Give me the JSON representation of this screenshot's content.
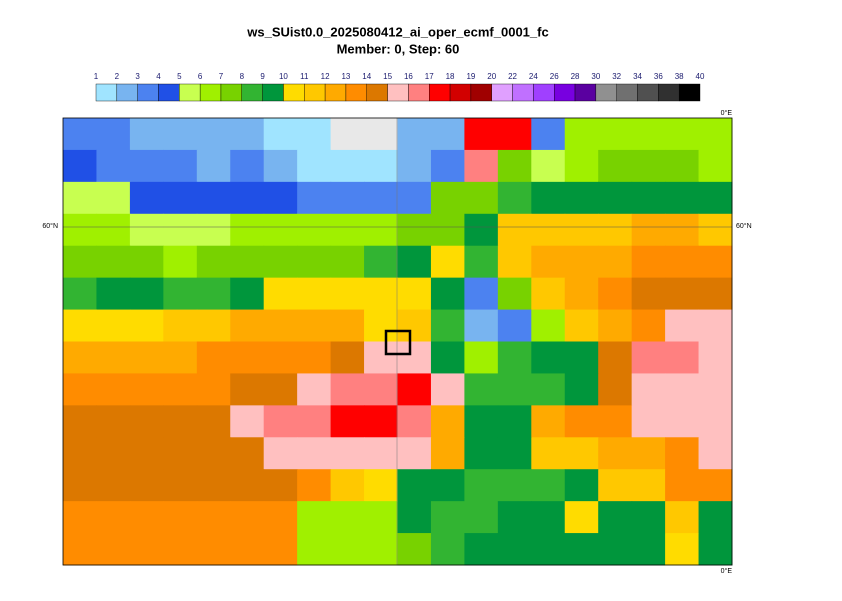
{
  "title": "ws_SUist0.0_2025080412_ai_oper_ecmf_0001_fc",
  "subtitle": "Member: 0, Step: 60",
  "colorbar": {
    "levels": [
      1,
      2,
      3,
      4,
      5,
      6,
      7,
      8,
      9,
      10,
      11,
      12,
      13,
      14,
      15,
      16,
      17,
      18,
      19,
      20,
      22,
      24,
      26,
      28,
      30,
      32,
      34,
      36,
      38,
      40
    ],
    "colors": [
      "#a0e4ff",
      "#78b4f0",
      "#4c82f0",
      "#2050e6",
      "#c8ff50",
      "#a0f000",
      "#78d200",
      "#32b432",
      "#00963c",
      "#ffdc00",
      "#ffc800",
      "#ffaa00",
      "#ff8c00",
      "#dc7800",
      "#ffc0c0",
      "#ff8080",
      "#ff0000",
      "#d20000",
      "#a00000",
      "#e0a0ff",
      "#c070ff",
      "#a040ff",
      "#7800e0",
      "#5a00a0",
      "#909090",
      "#707070",
      "#505050",
      "#303030",
      "#000000"
    ],
    "under_color": "#e8e8e8"
  },
  "map": {
    "lat_label": "60°N",
    "lon_label": "0°E",
    "field": [
      [
        3.5,
        3.5,
        2.5,
        2.5,
        2.5,
        2.5,
        1.5,
        1.5,
        0.5,
        0.5,
        2.5,
        2.5,
        17.5,
        17.5,
        3.5,
        6.5,
        6.5,
        6.5,
        6.5,
        6.5
      ],
      [
        4.5,
        3.5,
        3.5,
        3.5,
        2.5,
        3.5,
        2.5,
        1.5,
        1.5,
        1.5,
        2.5,
        3.5,
        16.5,
        7.5,
        5.5,
        6.5,
        7.5,
        7.5,
        7.5,
        6.5
      ],
      [
        5.5,
        5.5,
        4.5,
        4.5,
        4.5,
        4.5,
        4.5,
        3.5,
        3.5,
        3.5,
        3.5,
        7.5,
        7.5,
        8.5,
        9.5,
        9.5,
        9.5,
        9.5,
        9.5,
        9.5
      ],
      [
        6.5,
        6.5,
        5.5,
        5.5,
        5.5,
        6.5,
        6.5,
        6.5,
        6.5,
        6.5,
        7.5,
        7.5,
        9.5,
        11.5,
        11.5,
        11.5,
        11.5,
        12.5,
        12.5,
        11.5
      ],
      [
        7.5,
        7.5,
        7.5,
        6.5,
        7.5,
        7.5,
        7.5,
        7.5,
        7.5,
        8.5,
        9.5,
        10.5,
        8.5,
        11.5,
        12.5,
        12.5,
        12.5,
        13.5,
        13.5,
        13.5
      ],
      [
        8.5,
        9.5,
        9.5,
        8.5,
        8.5,
        9.5,
        10.5,
        10.5,
        10.5,
        10.5,
        10.5,
        9.5,
        3.5,
        7.5,
        11.5,
        12.5,
        13.5,
        14.5,
        14.5,
        14.5
      ],
      [
        10.5,
        10.5,
        10.5,
        11.5,
        11.5,
        12.5,
        12.5,
        12.5,
        12.5,
        10.5,
        11.5,
        8.5,
        2.5,
        3.5,
        6.5,
        11.5,
        12.5,
        13.5,
        15.5,
        15.5
      ],
      [
        12.5,
        12.5,
        12.5,
        12.5,
        13.5,
        13.5,
        13.5,
        13.5,
        14.5,
        15.5,
        15.5,
        9.5,
        6.5,
        8.5,
        9.5,
        9.5,
        14.5,
        16.5,
        16.5,
        15.5
      ],
      [
        13.5,
        13.5,
        13.5,
        13.5,
        13.5,
        14.5,
        14.5,
        15.5,
        16.5,
        16.5,
        17.5,
        15.5,
        8.5,
        8.5,
        8.5,
        9.5,
        14.5,
        15.5,
        15.5,
        15.5
      ],
      [
        14.5,
        14.5,
        14.5,
        14.5,
        14.5,
        15.5,
        16.5,
        16.5,
        17.5,
        17.5,
        16.5,
        12.5,
        9.5,
        9.5,
        12.5,
        13.5,
        13.5,
        15.5,
        15.5,
        15.5
      ],
      [
        14.5,
        14.5,
        14.5,
        14.5,
        14.5,
        14.5,
        15.5,
        15.5,
        15.5,
        15.5,
        15.5,
        12.5,
        9.5,
        9.5,
        11.5,
        11.5,
        12.5,
        12.5,
        13.5,
        15.5
      ],
      [
        14.5,
        14.5,
        14.5,
        14.5,
        14.5,
        14.5,
        14.5,
        13.5,
        11.5,
        10.5,
        9.5,
        9.5,
        8.5,
        8.5,
        8.5,
        9.5,
        11.5,
        11.5,
        13.5,
        13.5
      ],
      [
        13.5,
        13.5,
        13.5,
        13.5,
        13.5,
        13.5,
        13.5,
        6.5,
        6.5,
        6.5,
        9.5,
        8.5,
        8.5,
        9.5,
        9.5,
        10.5,
        9.5,
        9.5,
        11.5,
        9.5
      ],
      [
        13.5,
        13.5,
        13.5,
        13.5,
        13.5,
        13.5,
        13.5,
        6.5,
        6.5,
        6.5,
        7.5,
        8.5,
        9.5,
        9.5,
        9.5,
        9.5,
        9.5,
        9.5,
        10.5,
        9.5
      ]
    ]
  }
}
